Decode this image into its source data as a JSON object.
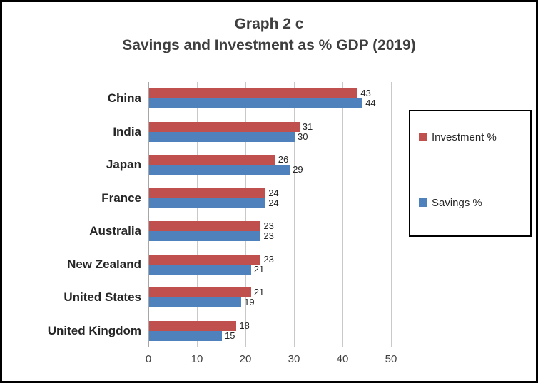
{
  "chart": {
    "title_line1": "Graph 2 c",
    "title_line2": "Savings and Investment as % GDP (2019)"
  },
  "chart_data": {
    "type": "bar",
    "orientation": "horizontal",
    "title": "Graph 2 c — Savings and Investment as % GDP (2019)",
    "categories": [
      "China",
      "India",
      "Japan",
      "France",
      "Australia",
      "New Zealand",
      "United States",
      "United Kingdom"
    ],
    "series": [
      {
        "name": "Investment %",
        "color": "#c0504d",
        "values": [
          43,
          31,
          26,
          24,
          23,
          23,
          21,
          18
        ]
      },
      {
        "name": "Savings %",
        "color": "#4f81bd",
        "values": [
          44,
          30,
          29,
          24,
          23,
          21,
          19,
          15
        ]
      }
    ],
    "xlabel": "",
    "ylabel": "",
    "xlim": [
      0,
      50
    ],
    "x_ticks": [
      0,
      10,
      20,
      30,
      40,
      50
    ],
    "grid": true,
    "data_labels": true,
    "legend_position": "right"
  }
}
